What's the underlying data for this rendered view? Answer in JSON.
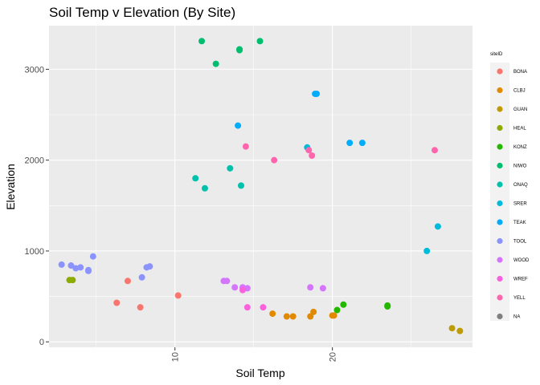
{
  "chart_data": {
    "type": "scatter",
    "title": "Soil Temp v Elevation (By Site)",
    "xlabel": "Soil Temp",
    "ylabel": "Elevation",
    "xlim": [
      2.0,
      28.9
    ],
    "ylim": [
      -60,
      3480
    ],
    "x_ticks": [
      10,
      20
    ],
    "y_ticks": [
      0,
      1000,
      2000,
      3000
    ],
    "grid": true,
    "legend_position": "right",
    "legend_title": "siteID",
    "series": [
      {
        "name": "BONA",
        "color": "#F8766D",
        "points": [
          [
            6.3,
            430
          ],
          [
            7.0,
            670
          ],
          [
            7.8,
            380
          ],
          [
            10.2,
            510
          ]
        ]
      },
      {
        "name": "CLBJ",
        "color": "#E18A00",
        "points": [
          [
            16.2,
            310
          ],
          [
            17.1,
            280
          ],
          [
            17.5,
            280
          ],
          [
            18.6,
            280
          ],
          [
            18.8,
            330
          ],
          [
            20.0,
            290
          ],
          [
            20.1,
            290
          ]
        ]
      },
      {
        "name": "GUAN",
        "color": "#BE9C00",
        "points": [
          [
            27.6,
            150
          ],
          [
            28.1,
            120
          ]
        ]
      },
      {
        "name": "HEAL",
        "color": "#8CAB00",
        "points": [
          [
            3.3,
            680
          ],
          [
            3.5,
            680
          ]
        ]
      },
      {
        "name": "KONZ",
        "color": "#24B700",
        "points": [
          [
            20.3,
            350
          ],
          [
            20.7,
            410
          ],
          [
            23.5,
            400
          ],
          [
            23.5,
            390
          ]
        ]
      },
      {
        "name": "NIWO",
        "color": "#00BE70",
        "points": [
          [
            11.7,
            3310
          ],
          [
            12.6,
            3060
          ],
          [
            14.1,
            3210
          ],
          [
            15.4,
            3310
          ],
          [
            14.1,
            3220
          ]
        ]
      },
      {
        "name": "ONAQ",
        "color": "#00C1AB",
        "points": [
          [
            11.3,
            1800
          ],
          [
            11.9,
            1690
          ],
          [
            13.5,
            1910
          ],
          [
            14.2,
            1720
          ]
        ]
      },
      {
        "name": "SRER",
        "color": "#00BBDA",
        "points": [
          [
            18.4,
            2140
          ],
          [
            26.0,
            1000
          ],
          [
            26.7,
            1270
          ]
        ]
      },
      {
        "name": "TEAK",
        "color": "#00ACFC",
        "points": [
          [
            14.0,
            2380
          ],
          [
            18.9,
            2730
          ],
          [
            19.0,
            2730
          ],
          [
            21.1,
            2190
          ],
          [
            21.9,
            2190
          ]
        ]
      },
      {
        "name": "TOOL",
        "color": "#8B93FF",
        "points": [
          [
            2.8,
            850
          ],
          [
            3.4,
            840
          ],
          [
            3.7,
            810
          ],
          [
            4.0,
            820
          ],
          [
            4.5,
            790
          ],
          [
            4.5,
            780
          ],
          [
            4.8,
            940
          ],
          [
            7.9,
            710
          ],
          [
            8.2,
            820
          ],
          [
            8.4,
            830
          ]
        ]
      },
      {
        "name": "WOOD",
        "color": "#D575FE",
        "points": [
          [
            13.1,
            670
          ],
          [
            13.3,
            670
          ],
          [
            13.8,
            600
          ],
          [
            14.3,
            600
          ],
          [
            14.6,
            590
          ],
          [
            18.6,
            600
          ],
          [
            19.4,
            590
          ]
        ]
      },
      {
        "name": "WREF",
        "color": "#F962DD",
        "points": [
          [
            14.3,
            570
          ],
          [
            14.6,
            380
          ],
          [
            15.6,
            380
          ]
        ]
      },
      {
        "name": "YELL",
        "color": "#FF65AC",
        "points": [
          [
            14.5,
            2150
          ],
          [
            16.3,
            2000
          ],
          [
            18.5,
            2110
          ],
          [
            18.7,
            2050
          ],
          [
            26.5,
            2110
          ]
        ]
      },
      {
        "name": "NA",
        "color": "#7F7F7F",
        "points": []
      }
    ]
  }
}
